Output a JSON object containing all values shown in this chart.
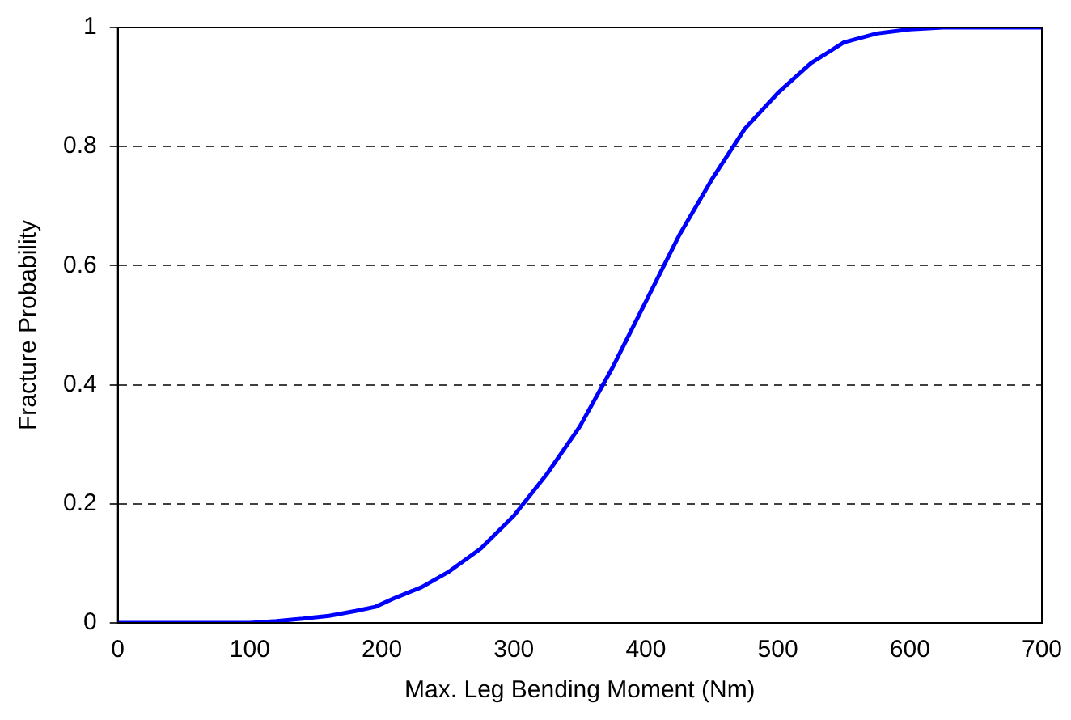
{
  "chart_data": {
    "type": "line",
    "xlabel": "Max. Leg Bending Moment (Nm)",
    "ylabel": "Fracture Probability",
    "x": [
      0,
      100,
      120,
      140,
      160,
      180,
      195,
      210,
      230,
      250,
      275,
      300,
      325,
      350,
      375,
      400,
      425,
      450,
      475,
      500,
      525,
      550,
      575,
      600,
      625,
      700
    ],
    "series": [
      {
        "color": "#0000ff",
        "values": [
          0,
          0,
          0.003,
          0.007,
          0.012,
          0.02,
          0.027,
          0.042,
          0.06,
          0.085,
          0.125,
          0.18,
          0.25,
          0.33,
          0.43,
          0.54,
          0.65,
          0.745,
          0.83,
          0.89,
          0.94,
          0.975,
          0.99,
          0.997,
          1,
          1
        ]
      }
    ],
    "xlim": [
      0,
      700
    ],
    "xticks": [
      0,
      100,
      200,
      300,
      400,
      500,
      600,
      700
    ],
    "ylim": [
      0,
      1
    ],
    "yticks": [
      0,
      0.2,
      0.4,
      0.6,
      0.8,
      1
    ],
    "grid": "y",
    "line_style": "solid",
    "marker": "none",
    "legend": false
  }
}
